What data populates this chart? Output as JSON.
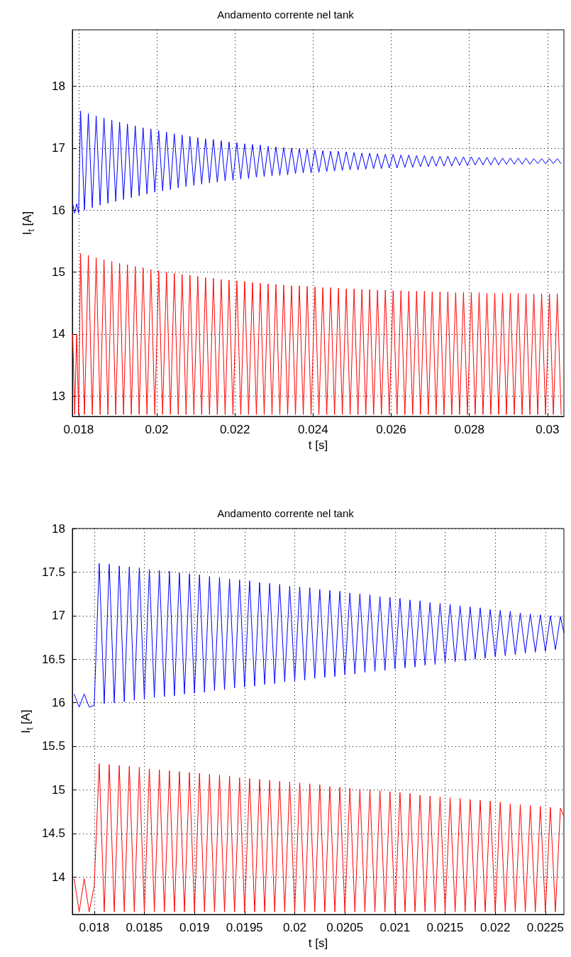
{
  "chart_data": [
    {
      "type": "line",
      "title": "Andamento corrente nel tank",
      "xlabel": "t [s]",
      "ylabel": "I$_{t}$ [A]",
      "xlim": [
        0.01784,
        0.03042
      ],
      "ylim": [
        12.67,
        18.91
      ],
      "xticks": [
        0.018,
        0.02,
        0.022,
        0.024,
        0.026,
        0.028,
        0.03
      ],
      "yticks": [
        13,
        14,
        15,
        16,
        17,
        18
      ],
      "grid": true,
      "legend": false,
      "x": [
        0.01785,
        0.0179,
        0.01795,
        0.018,
        0.01805,
        0.01815,
        0.01825,
        0.01835,
        0.01845,
        0.01855,
        0.01865,
        0.01875,
        0.01885,
        0.01895,
        0.01905,
        0.01915,
        0.01925,
        0.01935,
        0.01945,
        0.01955,
        0.01965,
        0.01975,
        0.01985,
        0.01995,
        0.02005,
        0.02015,
        0.02025,
        0.02035,
        0.02045,
        0.02055,
        0.02065,
        0.02075,
        0.02085,
        0.02095,
        0.02105,
        0.02115,
        0.02125,
        0.02135,
        0.02145,
        0.02155,
        0.02165,
        0.02175,
        0.02185,
        0.02195,
        0.02205,
        0.02215,
        0.02225,
        0.02235,
        0.02245,
        0.02255,
        0.02265,
        0.02275,
        0.02285,
        0.02295,
        0.02305,
        0.02315,
        0.02325,
        0.02335,
        0.02345,
        0.02355,
        0.02365,
        0.02375,
        0.02385,
        0.02395,
        0.02405,
        0.02415,
        0.02425,
        0.02435,
        0.02445,
        0.02455,
        0.02465,
        0.02475,
        0.02485,
        0.02495,
        0.02505,
        0.02515,
        0.02525,
        0.02535,
        0.02545,
        0.02555,
        0.02565,
        0.02575,
        0.02585,
        0.02595,
        0.02605,
        0.02615,
        0.02625,
        0.02635,
        0.02645,
        0.02655,
        0.02665,
        0.02675,
        0.02685,
        0.02695,
        0.02705,
        0.02715,
        0.02725,
        0.02735,
        0.02745,
        0.02755,
        0.02765,
        0.02775,
        0.02785,
        0.02795,
        0.02805,
        0.02815,
        0.02825,
        0.02835,
        0.02845,
        0.02855,
        0.02865,
        0.02875,
        0.02885,
        0.02895,
        0.02905,
        0.02915,
        0.02925,
        0.02935,
        0.02945,
        0.02955,
        0.02965,
        0.02975,
        0.02985,
        0.02995,
        0.03005,
        0.03015,
        0.03025,
        0.03035
      ],
      "series": [
        {
          "color": "#0000ff",
          "values": [
            16.1,
            15.95,
            16.1,
            15.95,
            17.6,
            16.0,
            17.56,
            16.04,
            17.52,
            16.08,
            17.49,
            16.11,
            17.45,
            16.14,
            17.42,
            16.17,
            17.39,
            16.2,
            17.36,
            16.23,
            17.33,
            16.26,
            17.31,
            16.29,
            17.28,
            16.31,
            17.26,
            16.33,
            17.23,
            16.36,
            17.21,
            16.38,
            17.19,
            16.4,
            17.17,
            16.42,
            17.15,
            16.44,
            17.14,
            16.45,
            17.12,
            16.47,
            17.1,
            16.48,
            17.09,
            16.5,
            17.07,
            16.51,
            17.06,
            16.53,
            17.05,
            16.54,
            17.03,
            16.55,
            17.02,
            16.56,
            17.01,
            16.57,
            17.0,
            16.59,
            16.99,
            16.6,
            16.98,
            16.6,
            16.97,
            16.61,
            16.96,
            16.62,
            16.95,
            16.63,
            16.95,
            16.64,
            16.94,
            16.65,
            16.93,
            16.65,
            16.92,
            16.66,
            16.92,
            16.67,
            16.91,
            16.67,
            16.9,
            16.68,
            16.9,
            16.68,
            16.89,
            16.69,
            16.89,
            16.69,
            16.88,
            16.7,
            16.88,
            16.7,
            16.87,
            16.71,
            16.87,
            16.71,
            16.87,
            16.71,
            16.86,
            16.72,
            16.86,
            16.72,
            16.86,
            16.73,
            16.85,
            16.73,
            16.85,
            16.73,
            16.85,
            16.73,
            16.84,
            16.74,
            16.84,
            16.74,
            16.84,
            16.74,
            16.84,
            16.74,
            16.83,
            16.75,
            16.83,
            16.75,
            16.83,
            16.75,
            16.83,
            16.75
          ]
        },
        {
          "color": "#ff0000",
          "values": [
            14.0,
            12.7,
            14.0,
            12.7,
            15.3,
            12.7,
            15.27,
            12.7,
            15.23,
            12.7,
            15.2,
            12.7,
            15.17,
            12.7,
            15.14,
            12.7,
            15.12,
            12.7,
            15.09,
            12.7,
            15.07,
            12.7,
            15.04,
            12.7,
            15.02,
            12.7,
            15.0,
            12.7,
            14.98,
            12.7,
            14.96,
            12.7,
            14.95,
            12.7,
            14.93,
            12.7,
            14.91,
            12.7,
            14.9,
            12.7,
            14.88,
            12.7,
            14.87,
            12.7,
            14.86,
            12.7,
            14.85,
            12.7,
            14.83,
            12.7,
            14.82,
            12.7,
            14.81,
            12.7,
            14.8,
            12.7,
            14.79,
            12.7,
            14.78,
            12.7,
            14.78,
            12.7,
            14.77,
            12.7,
            14.76,
            12.7,
            14.75,
            12.7,
            14.75,
            12.7,
            14.74,
            12.7,
            14.73,
            12.7,
            14.73,
            12.7,
            14.72,
            12.7,
            14.72,
            12.7,
            14.71,
            12.7,
            14.71,
            12.7,
            14.7,
            12.7,
            14.7,
            12.7,
            14.69,
            12.7,
            14.69,
            12.7,
            14.69,
            12.7,
            14.68,
            12.7,
            14.68,
            12.7,
            14.68,
            12.7,
            14.67,
            12.7,
            14.67,
            12.7,
            14.67,
            12.7,
            14.67,
            12.7,
            14.66,
            12.7,
            14.66,
            12.7,
            14.66,
            12.7,
            14.66,
            12.7,
            14.66,
            12.7,
            14.65,
            12.7,
            14.65,
            12.7,
            14.65,
            12.7,
            14.65,
            12.7,
            14.65,
            12.7
          ]
        }
      ]
    },
    {
      "type": "line",
      "title": "Andamento corrente nel tank",
      "xlabel": "t [s]",
      "ylabel": "I$_{t}$ [A]",
      "xlim": [
        0.017782,
        0.022685
      ],
      "ylim": [
        13.57,
        18
      ],
      "xticks": [
        0.018,
        0.0185,
        0.019,
        0.0195,
        0.02,
        0.0205,
        0.021,
        0.0215,
        0.022,
        0.0225
      ],
      "yticks": [
        14,
        14.5,
        15,
        15.5,
        16,
        16.5,
        17,
        17.5,
        18
      ],
      "grid": true,
      "legend": false,
      "x": [
        0.0178,
        0.01785,
        0.0179,
        0.01795,
        0.018,
        0.01805,
        0.0181,
        0.01815,
        0.0182,
        0.01825,
        0.0183,
        0.01835,
        0.0184,
        0.01845,
        0.0185,
        0.01855,
        0.0186,
        0.01865,
        0.0187,
        0.01875,
        0.0188,
        0.01885,
        0.0189,
        0.01895,
        0.019,
        0.01905,
        0.0191,
        0.01915,
        0.0192,
        0.01925,
        0.0193,
        0.01935,
        0.0194,
        0.01945,
        0.0195,
        0.01955,
        0.0196,
        0.01965,
        0.0197,
        0.01975,
        0.0198,
        0.01985,
        0.0199,
        0.01995,
        0.02,
        0.02005,
        0.0201,
        0.02015,
        0.0202,
        0.02025,
        0.0203,
        0.02035,
        0.0204,
        0.02045,
        0.0205,
        0.02055,
        0.0206,
        0.02065,
        0.0207,
        0.02075,
        0.0208,
        0.02085,
        0.0209,
        0.02095,
        0.021,
        0.02105,
        0.0211,
        0.02115,
        0.0212,
        0.02125,
        0.0213,
        0.02135,
        0.0214,
        0.02145,
        0.0215,
        0.02155,
        0.0216,
        0.02165,
        0.0217,
        0.02175,
        0.0218,
        0.02185,
        0.0219,
        0.02195,
        0.022,
        0.02205,
        0.0221,
        0.02215,
        0.0222,
        0.02225,
        0.0223,
        0.02235,
        0.0224,
        0.02245,
        0.0225,
        0.02255,
        0.0226,
        0.02265,
        0.022685
      ],
      "series": [
        {
          "color": "#0000ff",
          "values": [
            16.1,
            15.95,
            16.1,
            15.95,
            15.97,
            17.6,
            15.99,
            17.59,
            16.0,
            17.57,
            16.01,
            17.56,
            16.03,
            17.55,
            16.04,
            17.53,
            16.06,
            17.52,
            16.07,
            17.51,
            16.08,
            17.49,
            16.1,
            17.48,
            16.11,
            17.47,
            16.12,
            17.45,
            16.14,
            17.44,
            16.15,
            17.42,
            16.17,
            17.41,
            16.18,
            17.4,
            16.19,
            17.38,
            16.21,
            17.37,
            16.22,
            17.36,
            16.24,
            17.34,
            16.25,
            17.33,
            16.26,
            17.32,
            16.28,
            17.3,
            16.29,
            17.29,
            16.3,
            17.28,
            16.32,
            17.26,
            16.33,
            17.25,
            16.35,
            17.24,
            16.36,
            17.22,
            16.37,
            17.21,
            16.39,
            17.2,
            16.4,
            17.18,
            16.41,
            17.17,
            16.43,
            17.15,
            16.44,
            17.14,
            16.46,
            17.13,
            16.47,
            17.11,
            16.48,
            17.1,
            16.5,
            17.09,
            16.51,
            17.07,
            16.53,
            17.06,
            16.54,
            17.05,
            16.55,
            17.03,
            16.57,
            17.02,
            16.58,
            17.01,
            16.59,
            17.0,
            16.61,
            16.99,
            16.8
          ]
        },
        {
          "color": "#ff0000",
          "values": [
            13.98,
            13.6,
            13.98,
            13.6,
            13.9,
            15.3,
            13.6,
            15.29,
            13.6,
            15.28,
            13.6,
            15.27,
            13.6,
            15.26,
            13.6,
            15.24,
            13.6,
            15.23,
            13.6,
            15.22,
            13.6,
            15.21,
            13.6,
            15.2,
            13.6,
            15.19,
            13.6,
            15.18,
            13.6,
            15.17,
            13.6,
            15.16,
            13.6,
            15.14,
            13.6,
            15.13,
            13.6,
            15.12,
            13.6,
            15.11,
            13.6,
            15.1,
            13.6,
            15.09,
            13.6,
            15.08,
            13.6,
            15.07,
            13.6,
            15.06,
            13.6,
            15.04,
            13.6,
            15.03,
            13.6,
            15.02,
            13.6,
            15.01,
            13.6,
            15.0,
            13.6,
            14.99,
            13.6,
            14.98,
            13.6,
            14.97,
            13.6,
            14.96,
            13.6,
            14.94,
            13.6,
            14.93,
            13.6,
            14.92,
            13.6,
            14.91,
            13.6,
            14.9,
            13.6,
            14.89,
            13.6,
            14.88,
            13.6,
            14.87,
            13.6,
            14.86,
            13.6,
            14.84,
            13.6,
            14.83,
            13.6,
            14.82,
            13.6,
            14.81,
            13.6,
            14.8,
            13.6,
            14.79,
            14.7
          ]
        }
      ]
    }
  ]
}
